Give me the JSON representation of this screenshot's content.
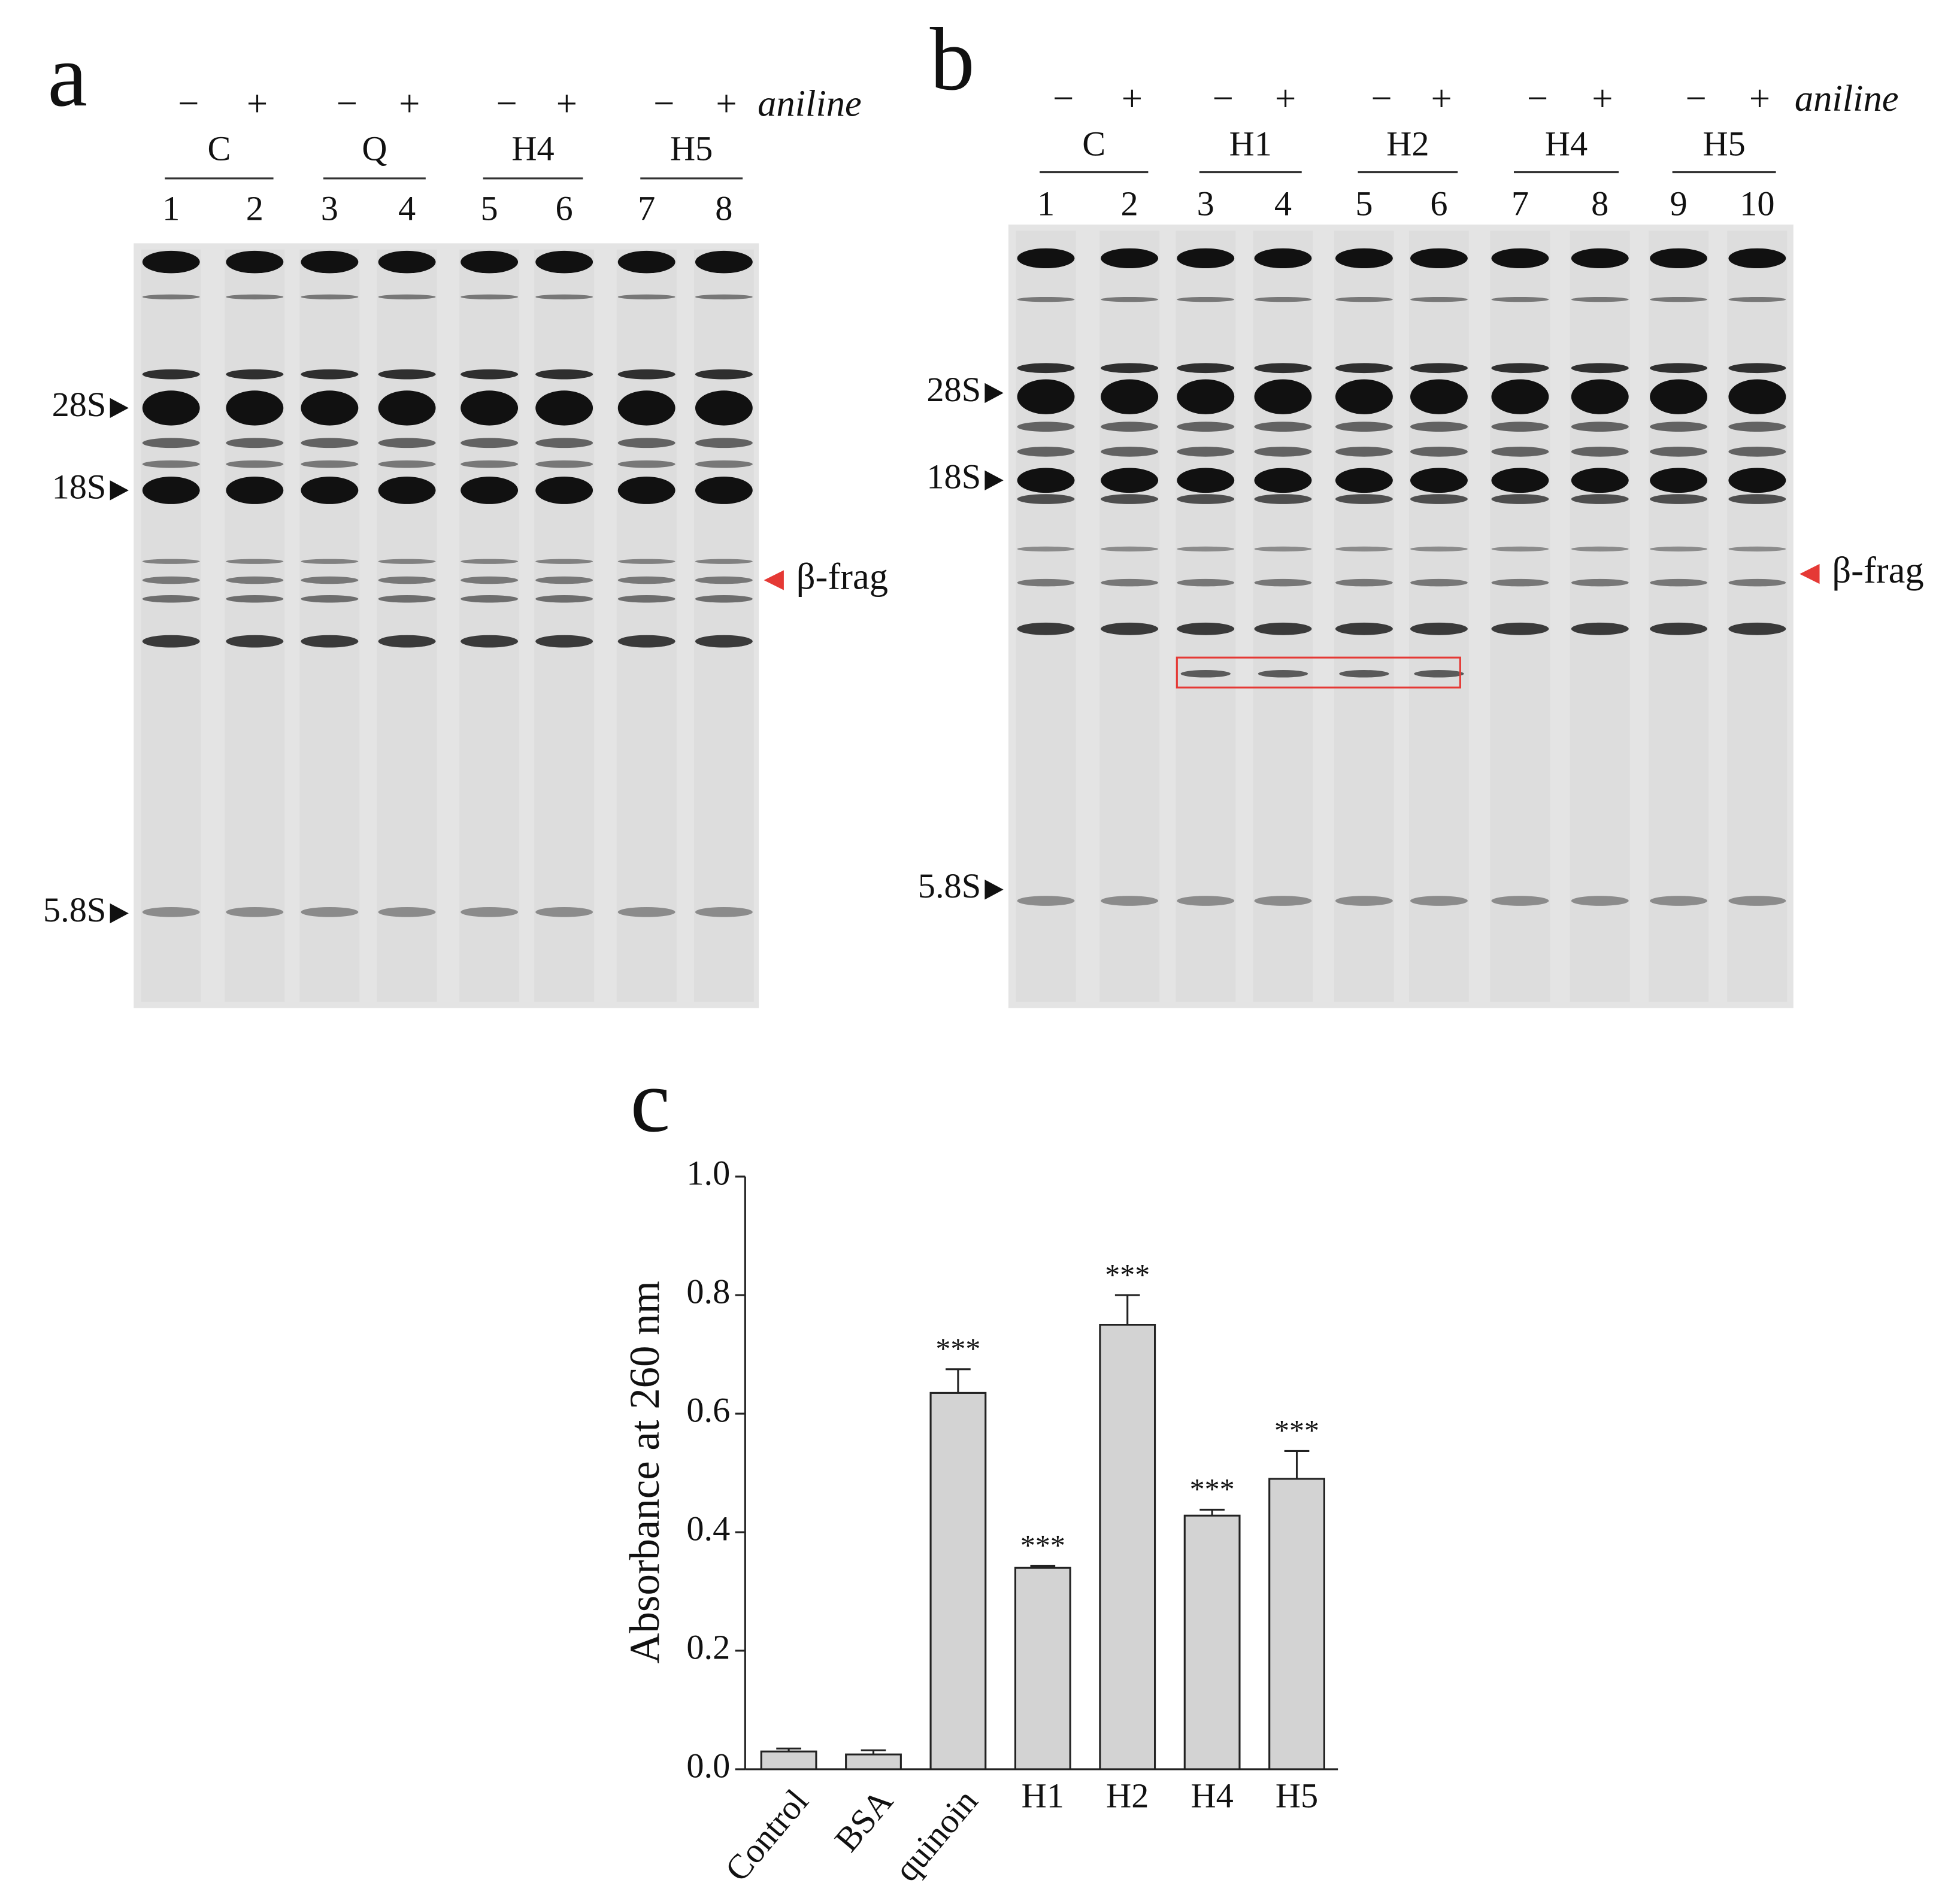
{
  "panel_a": {
    "letter": "a",
    "treatment_label": "aniline",
    "signs": [
      "−",
      "+",
      "−",
      "+",
      "−",
      "+",
      "−",
      "+"
    ],
    "groups": [
      "C",
      "Q",
      "H4",
      "H5"
    ],
    "lanes": [
      "1",
      "2",
      "3",
      "4",
      "5",
      "6",
      "7",
      "8"
    ],
    "markers": [
      "28S",
      "18S",
      "5.8S"
    ],
    "fragment_label": "β-frag"
  },
  "panel_b": {
    "letter": "b",
    "treatment_label": "aniline",
    "signs": [
      "−",
      "+",
      "−",
      "+",
      "−",
      "+",
      "−",
      "+",
      "−",
      "+"
    ],
    "groups": [
      "C",
      "H1",
      "H2",
      "H4",
      "H5"
    ],
    "lanes": [
      "1",
      "2",
      "3",
      "4",
      "5",
      "6",
      "7",
      "8",
      "9",
      "10"
    ],
    "markers": [
      "28S",
      "18S",
      "5.8S"
    ],
    "fragment_label": "β-frag"
  },
  "chart_data": {
    "type": "bar",
    "panel_letter": "c",
    "y_label": "Absorbance at 260 nm",
    "categories": [
      "Control",
      "BSA",
      "quinoin",
      "H1",
      "H2",
      "H4",
      "H5"
    ],
    "values": [
      0.03,
      0.025,
      0.635,
      0.34,
      0.75,
      0.428,
      0.49
    ],
    "errors": [
      0.005,
      0.007,
      0.04,
      0.003,
      0.05,
      0.01,
      0.047
    ],
    "significance": [
      null,
      null,
      "***",
      "***",
      "***",
      "***",
      "***"
    ],
    "color": "#d3d3d3",
    "ylim": [
      0,
      1.0
    ],
    "yticks": [
      {
        "value": 0,
        "label": "0.0"
      },
      {
        "value": 0.2,
        "label": "0.2"
      },
      {
        "value": 0.4,
        "label": "0.4"
      },
      {
        "value": 0.6,
        "label": "0.6"
      },
      {
        "value": 0.8,
        "label": "0.8"
      },
      {
        "value": 1.0,
        "label": "1.0"
      }
    ]
  }
}
